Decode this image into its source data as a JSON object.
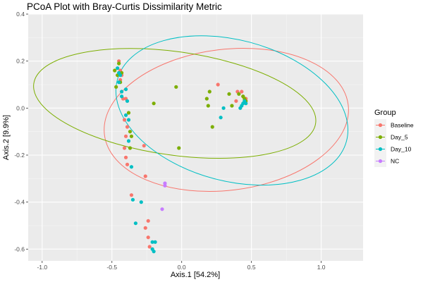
{
  "chart_data": {
    "type": "scatter",
    "title": "PCoA Plot with Bray-Curtis Dissimilarity Metric",
    "xlabel": "Axis.1   [54.2%]",
    "ylabel": "Axis.2   [9.9%]",
    "xlim": [
      -1.1,
      1.3
    ],
    "ylim": [
      -0.65,
      0.4
    ],
    "x_ticks": [
      -1.0,
      -0.5,
      0.0,
      0.5,
      1.0
    ],
    "x_tick_labels": [
      "-1.0",
      "-0.5",
      "0.0",
      "0.5",
      "1.0"
    ],
    "y_ticks": [
      0.4,
      0.2,
      0.0,
      -0.2,
      -0.4,
      -0.6
    ],
    "y_tick_labels": [
      "0.4",
      "0.2",
      "0.0",
      "-0.2",
      "-0.4",
      "-0.6"
    ],
    "grid": true,
    "legend": {
      "title": "Group",
      "position": "right"
    },
    "series": [
      {
        "name": "Baseline",
        "color": "#F8766D",
        "points": [
          [
            -0.45,
            0.2
          ],
          [
            -0.44,
            0.16
          ],
          [
            -0.43,
            0.14
          ],
          [
            -0.44,
            0.12
          ],
          [
            -0.42,
            0.04
          ],
          [
            -0.4,
            0.04
          ],
          [
            -0.41,
            -0.05
          ],
          [
            -0.39,
            -0.08
          ],
          [
            -0.4,
            -0.12
          ],
          [
            -0.41,
            -0.17
          ],
          [
            -0.4,
            -0.21
          ],
          [
            -0.39,
            -0.24
          ],
          [
            -0.27,
            -0.16
          ],
          [
            -0.26,
            -0.29
          ],
          [
            -0.36,
            -0.37
          ],
          [
            -0.24,
            -0.48
          ],
          [
            -0.26,
            -0.51
          ],
          [
            -0.24,
            -0.55
          ],
          [
            -0.23,
            -0.59
          ],
          [
            0.26,
            0.1
          ],
          [
            0.4,
            0.07
          ],
          [
            0.43,
            0.07
          ],
          [
            0.44,
            0.05
          ],
          [
            0.46,
            0.04
          ],
          [
            0.39,
            0.03
          ]
        ]
      },
      {
        "name": "Day_5",
        "color": "#7CAE00",
        "points": [
          [
            -0.48,
            0.16
          ],
          [
            -0.46,
            0.14
          ],
          [
            -0.45,
            0.19
          ],
          [
            -0.43,
            0.15
          ],
          [
            -0.47,
            0.09
          ],
          [
            -0.44,
            0.11
          ],
          [
            -0.38,
            -0.02
          ],
          [
            -0.37,
            -0.1
          ],
          [
            -0.36,
            -0.12
          ],
          [
            -0.37,
            -0.17
          ],
          [
            -0.2,
            0.02
          ],
          [
            -0.02,
            -0.17
          ],
          [
            -0.04,
            0.09
          ],
          [
            0.18,
            0.04
          ],
          [
            0.19,
            0.01
          ],
          [
            0.2,
            0.07
          ],
          [
            0.22,
            -0.08
          ],
          [
            0.34,
            0.06
          ],
          [
            0.36,
            0.01
          ],
          [
            0.41,
            0.06
          ],
          [
            0.44,
            0.05
          ],
          [
            0.45,
            0.04
          ],
          [
            0.46,
            0.03
          ]
        ]
      },
      {
        "name": "Day_10",
        "color": "#00BFC4",
        "points": [
          [
            -0.46,
            0.17
          ],
          [
            -0.45,
            0.15
          ],
          [
            -0.44,
            0.14
          ],
          [
            -0.45,
            0.11
          ],
          [
            -0.43,
            0.07
          ],
          [
            -0.43,
            0.05
          ],
          [
            -0.4,
            0.08
          ],
          [
            -0.39,
            0.03
          ],
          [
            -0.4,
            -0.03
          ],
          [
            -0.38,
            -0.05
          ],
          [
            -0.38,
            -0.14
          ],
          [
            -0.36,
            -0.25
          ],
          [
            -0.35,
            -0.39
          ],
          [
            -0.29,
            -0.4
          ],
          [
            -0.33,
            -0.49
          ],
          [
            -0.21,
            -0.57
          ],
          [
            -0.19,
            -0.57
          ],
          [
            -0.21,
            -0.6
          ],
          [
            -0.2,
            -0.61
          ],
          [
            0.28,
            -0.04
          ],
          [
            0.3,
            0.0
          ],
          [
            0.42,
            0.0
          ],
          [
            0.43,
            0.01
          ],
          [
            0.44,
            0.02
          ],
          [
            0.45,
            0.03
          ],
          [
            0.46,
            0.02
          ]
        ]
      },
      {
        "name": "NC",
        "color": "#C77CFF",
        "points": [
          [
            -0.12,
            -0.32
          ],
          [
            -0.12,
            -0.33
          ],
          [
            -0.14,
            -0.43
          ]
        ]
      }
    ],
    "ellipses": [
      {
        "series": "Baseline",
        "center": [
          0.32,
          -0.05
        ],
        "rx": 0.88,
        "ry": 0.3,
        "angle_deg": 7
      },
      {
        "series": "Day_5",
        "center": [
          -0.05,
          0.02
        ],
        "rx": 1.02,
        "ry": 0.22,
        "angle_deg": -8
      },
      {
        "series": "Day_10",
        "center": [
          0.36,
          -0.01
        ],
        "rx": 0.85,
        "ry": 0.3,
        "angle_deg": -15
      }
    ]
  }
}
